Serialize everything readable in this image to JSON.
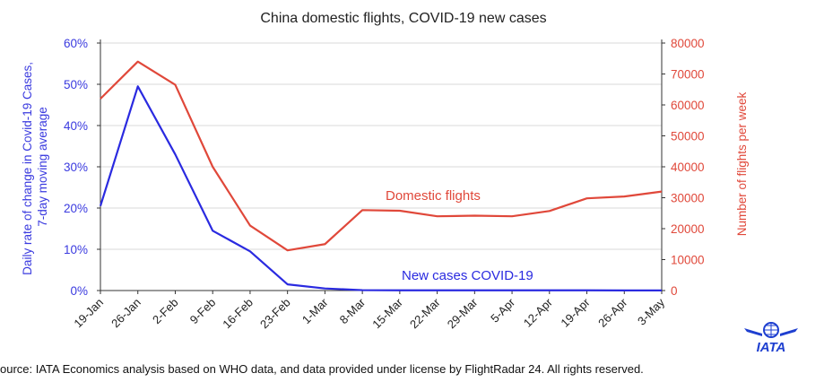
{
  "chart_data": {
    "type": "line",
    "title": "China domestic flights, COVID-19 new cases",
    "categories": [
      "19-Jan",
      "26-Jan",
      "2-Feb",
      "9-Feb",
      "16-Feb",
      "23-Feb",
      "1-Mar",
      "8-Mar",
      "15-Mar",
      "22-Mar",
      "29-Mar",
      "5-Apr",
      "12-Apr",
      "19-Apr",
      "26-Apr",
      "3-May"
    ],
    "y_left": {
      "label": "Daily rate of change in Covid-19 Cases, 7-day moving average",
      "range": [
        0,
        0.6
      ],
      "ticks": [
        "0%",
        "10%",
        "20%",
        "30%",
        "40%",
        "50%",
        "60%"
      ],
      "color": "#3a3adf"
    },
    "y_right": {
      "label": "Number of flights per week",
      "range": [
        0,
        80000
      ],
      "ticks": [
        "0",
        "10000",
        "20000",
        "30000",
        "40000",
        "50000",
        "60000",
        "70000",
        "80000"
      ],
      "color": "#e0483a"
    },
    "grid": true,
    "series": [
      {
        "name": "New cases COVID-19",
        "axis": "left",
        "color": "#2a2ae0",
        "values": [
          0.205,
          0.495,
          0.33,
          0.145,
          0.095,
          0.015,
          0.005,
          0.001,
          0.0005,
          0.0005,
          0.0005,
          0.0005,
          0.0005,
          0.0005,
          0.0003,
          0.0002
        ]
      },
      {
        "name": "Domestic flights",
        "axis": "right",
        "color": "#e0483a",
        "values": [
          62000,
          74000,
          66500,
          40000,
          21000,
          13000,
          15000,
          26000,
          25800,
          24000,
          24200,
          24000,
          25700,
          29800,
          30400,
          32000
        ]
      }
    ],
    "source": "ource: IATA Economics analysis based on WHO data, and data provided under license by FlightRadar 24. All rights reserved."
  },
  "logo": {
    "text": "IATA",
    "color": "#1e3fd0"
  }
}
